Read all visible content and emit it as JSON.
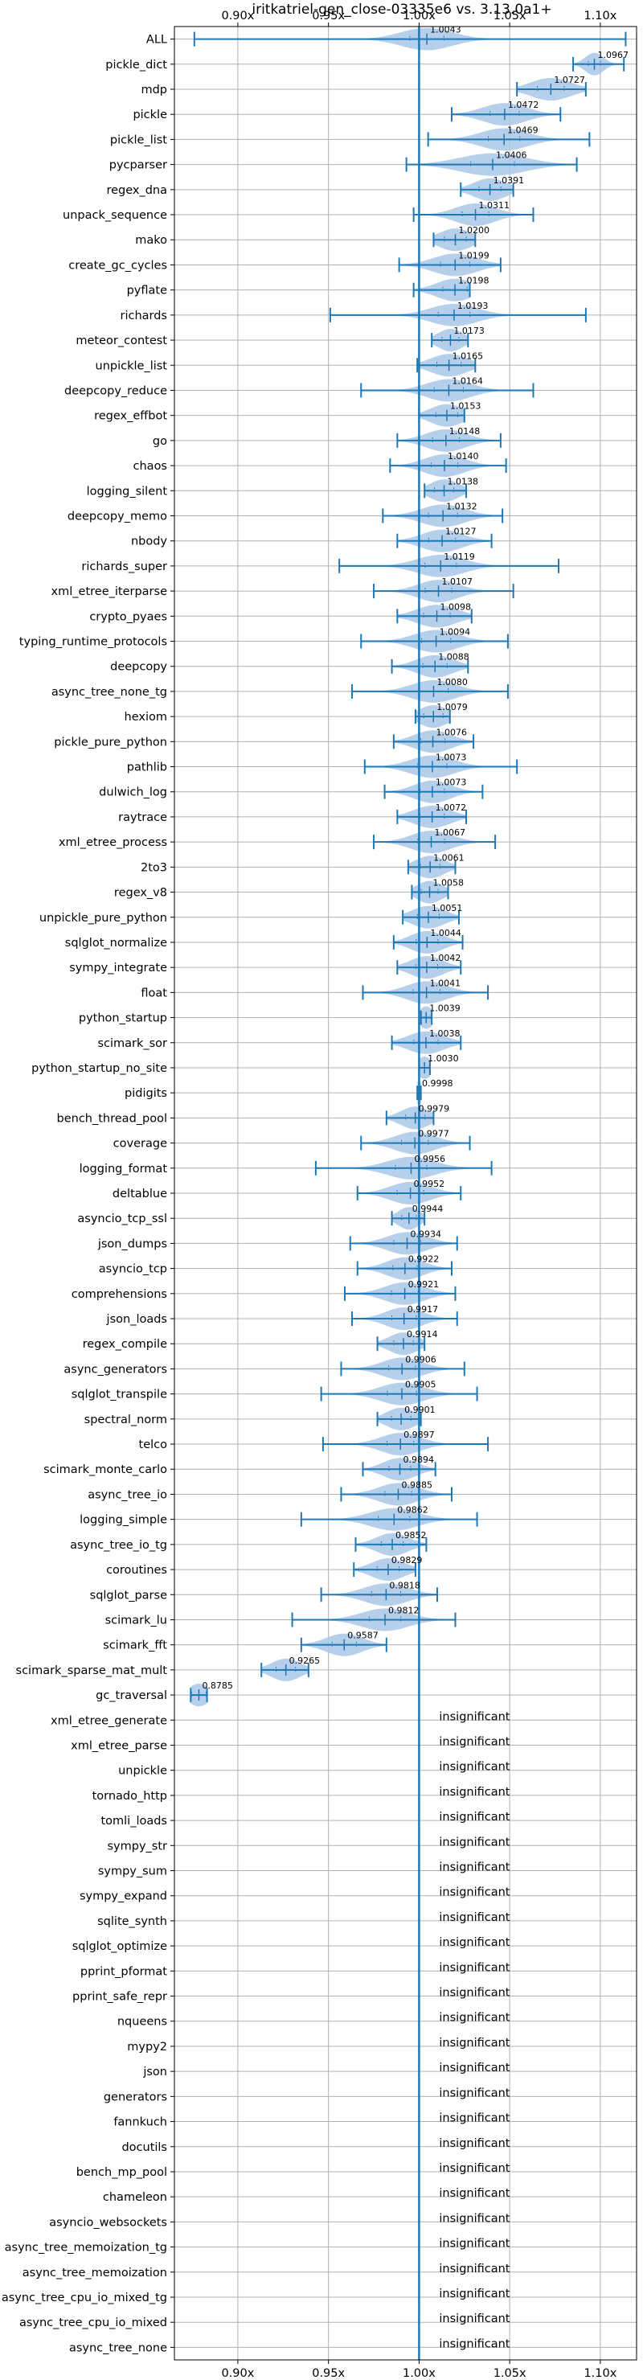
{
  "chart_data": {
    "type": "violin",
    "title": "iritkatriel-gen_close-03335e6 vs. 3.13.0a1+",
    "xlabel": "",
    "ylabel": "",
    "xlim": [
      0.865,
      1.12
    ],
    "x_ticks": [
      0.9,
      0.95,
      1.0,
      1.05,
      1.1
    ],
    "x_tick_labels": [
      "0.90x",
      "0.95x",
      "1.00x",
      "1.05x",
      "1.10x"
    ],
    "ticks_top": true,
    "ticks_bottom": true,
    "grid": true,
    "reference_line": 1.0,
    "colors": {
      "violin": "#a9c8e8",
      "whisker": "#1f77b4",
      "reference": "#1f77b4",
      "grid": "#b0b0b0"
    },
    "insignificant_text": "insignificant",
    "benchmarks": [
      {
        "name": "ALL",
        "median": 1.0043,
        "label": "1.0043",
        "min": 0.876,
        "max": 1.114,
        "w": 0.014,
        "significant": true
      },
      {
        "name": "pickle_dict",
        "median": 1.0967,
        "label": "1.0967",
        "min": 1.085,
        "max": 1.113,
        "w": 0.005,
        "significant": true
      },
      {
        "name": "mdp",
        "median": 1.0727,
        "label": "1.0727",
        "min": 1.054,
        "max": 1.092,
        "w": 0.011,
        "significant": true
      },
      {
        "name": "pickle",
        "median": 1.0472,
        "label": "1.0472",
        "min": 1.018,
        "max": 1.078,
        "w": 0.012,
        "significant": true
      },
      {
        "name": "pickle_list",
        "median": 1.0469,
        "label": "1.0469",
        "min": 1.005,
        "max": 1.094,
        "w": 0.013,
        "significant": true
      },
      {
        "name": "pycparser",
        "median": 1.0406,
        "label": "1.0406",
        "min": 0.993,
        "max": 1.087,
        "w": 0.018,
        "significant": true
      },
      {
        "name": "regex_dna",
        "median": 1.0391,
        "label": "1.0391",
        "min": 1.023,
        "max": 1.052,
        "w": 0.009,
        "significant": true
      },
      {
        "name": "unpack_sequence",
        "median": 1.0311,
        "label": "1.0311",
        "min": 0.997,
        "max": 1.063,
        "w": 0.011,
        "significant": true
      },
      {
        "name": "mako",
        "median": 1.02,
        "label": "1.0200",
        "min": 1.008,
        "max": 1.031,
        "w": 0.009,
        "significant": true
      },
      {
        "name": "create_gc_cycles",
        "median": 1.0199,
        "label": "1.0199",
        "min": 0.989,
        "max": 1.045,
        "w": 0.012,
        "significant": true
      },
      {
        "name": "pyflate",
        "median": 1.0198,
        "label": "1.0198",
        "min": 0.997,
        "max": 1.028,
        "w": 0.01,
        "significant": true
      },
      {
        "name": "richards",
        "median": 1.0193,
        "label": "1.0193",
        "min": 0.951,
        "max": 1.092,
        "w": 0.013,
        "significant": true
      },
      {
        "name": "meteor_contest",
        "median": 1.0173,
        "label": "1.0173",
        "min": 1.007,
        "max": 1.027,
        "w": 0.007,
        "significant": true
      },
      {
        "name": "unpickle_list",
        "median": 1.0165,
        "label": "1.0165",
        "min": 0.999,
        "max": 1.031,
        "w": 0.01,
        "significant": true
      },
      {
        "name": "deepcopy_reduce",
        "median": 1.0164,
        "label": "1.0164",
        "min": 0.968,
        "max": 1.063,
        "w": 0.012,
        "significant": true
      },
      {
        "name": "regex_effbot",
        "median": 1.0153,
        "label": "1.0153",
        "min": 1.0,
        "max": 1.025,
        "w": 0.009,
        "significant": true
      },
      {
        "name": "go",
        "median": 1.0148,
        "label": "1.0148",
        "min": 0.988,
        "max": 1.045,
        "w": 0.011,
        "significant": true
      },
      {
        "name": "chaos",
        "median": 1.014,
        "label": "1.0140",
        "min": 0.984,
        "max": 1.048,
        "w": 0.011,
        "significant": true
      },
      {
        "name": "logging_silent",
        "median": 1.0138,
        "label": "1.0138",
        "min": 1.003,
        "max": 1.026,
        "w": 0.008,
        "significant": true
      },
      {
        "name": "deepcopy_memo",
        "median": 1.0132,
        "label": "1.0132",
        "min": 0.98,
        "max": 1.046,
        "w": 0.012,
        "significant": true
      },
      {
        "name": "nbody",
        "median": 1.0127,
        "label": "1.0127",
        "min": 0.988,
        "max": 1.04,
        "w": 0.011,
        "significant": true
      },
      {
        "name": "richards_super",
        "median": 1.0119,
        "label": "1.0119",
        "min": 0.956,
        "max": 1.077,
        "w": 0.013,
        "significant": true
      },
      {
        "name": "xml_etree_iterparse",
        "median": 1.0107,
        "label": "1.0107",
        "min": 0.975,
        "max": 1.052,
        "w": 0.011,
        "significant": true
      },
      {
        "name": "crypto_pyaes",
        "median": 1.0098,
        "label": "1.0098",
        "min": 0.988,
        "max": 1.029,
        "w": 0.011,
        "significant": true
      },
      {
        "name": "typing_runtime_protocols",
        "median": 1.0094,
        "label": "1.0094",
        "min": 0.968,
        "max": 1.049,
        "w": 0.012,
        "significant": true
      },
      {
        "name": "deepcopy",
        "median": 1.0088,
        "label": "1.0088",
        "min": 0.985,
        "max": 1.027,
        "w": 0.01,
        "significant": true
      },
      {
        "name": "async_tree_none_tg",
        "median": 1.008,
        "label": "1.0080",
        "min": 0.963,
        "max": 1.049,
        "w": 0.012,
        "significant": true
      },
      {
        "name": "hexiom",
        "median": 1.0079,
        "label": "1.0079",
        "min": 0.998,
        "max": 1.017,
        "w": 0.008,
        "significant": true
      },
      {
        "name": "pickle_pure_python",
        "median": 1.0076,
        "label": "1.0076",
        "min": 0.986,
        "max": 1.03,
        "w": 0.01,
        "significant": true
      },
      {
        "name": "pathlib",
        "median": 1.0073,
        "label": "1.0073",
        "min": 0.97,
        "max": 1.054,
        "w": 0.012,
        "significant": true
      },
      {
        "name": "dulwich_log",
        "median": 1.0073,
        "label": "1.0073",
        "min": 0.981,
        "max": 1.035,
        "w": 0.01,
        "significant": true
      },
      {
        "name": "raytrace",
        "median": 1.0072,
        "label": "1.0072",
        "min": 0.988,
        "max": 1.026,
        "w": 0.01,
        "significant": true
      },
      {
        "name": "xml_etree_process",
        "median": 1.0067,
        "label": "1.0067",
        "min": 0.975,
        "max": 1.042,
        "w": 0.011,
        "significant": true
      },
      {
        "name": "2to3",
        "median": 1.0061,
        "label": "1.0061",
        "min": 0.994,
        "max": 1.02,
        "w": 0.008,
        "significant": true
      },
      {
        "name": "regex_v8",
        "median": 1.0058,
        "label": "1.0058",
        "min": 0.996,
        "max": 1.016,
        "w": 0.007,
        "significant": true
      },
      {
        "name": "unpickle_pure_python",
        "median": 1.0051,
        "label": "1.0051",
        "min": 0.991,
        "max": 1.022,
        "w": 0.009,
        "significant": true
      },
      {
        "name": "sqlglot_normalize",
        "median": 1.0044,
        "label": "1.0044",
        "min": 0.986,
        "max": 1.024,
        "w": 0.009,
        "significant": true
      },
      {
        "name": "sympy_integrate",
        "median": 1.0042,
        "label": "1.0042",
        "min": 0.988,
        "max": 1.023,
        "w": 0.009,
        "significant": true
      },
      {
        "name": "float",
        "median": 1.0041,
        "label": "1.0041",
        "min": 0.969,
        "max": 1.038,
        "w": 0.011,
        "significant": true
      },
      {
        "name": "python_startup",
        "median": 1.0039,
        "label": "1.0039",
        "min": 1.001,
        "max": 1.007,
        "w": 0.004,
        "significant": true
      },
      {
        "name": "scimark_sor",
        "median": 1.0038,
        "label": "1.0038",
        "min": 0.985,
        "max": 1.023,
        "w": 0.01,
        "significant": true
      },
      {
        "name": "python_startup_no_site",
        "median": 1.003,
        "label": "1.0030",
        "min": 1.0,
        "max": 1.006,
        "w": 0.004,
        "significant": true
      },
      {
        "name": "pidigits",
        "median": 0.9998,
        "label": "0.9998",
        "min": 0.999,
        "max": 1.001,
        "w": 0.003,
        "significant": true
      },
      {
        "name": "bench_thread_pool",
        "median": 0.9979,
        "label": "0.9979",
        "min": 0.982,
        "max": 1.008,
        "w": 0.008,
        "significant": true
      },
      {
        "name": "coverage",
        "median": 0.9977,
        "label": "0.9977",
        "min": 0.968,
        "max": 1.028,
        "w": 0.011,
        "significant": true
      },
      {
        "name": "logging_format",
        "median": 0.9956,
        "label": "0.9956",
        "min": 0.943,
        "max": 1.04,
        "w": 0.013,
        "significant": true
      },
      {
        "name": "deltablue",
        "median": 0.9952,
        "label": "0.9952",
        "min": 0.966,
        "max": 1.023,
        "w": 0.011,
        "significant": true
      },
      {
        "name": "asyncio_tcp_ssl",
        "median": 0.9944,
        "label": "0.9944",
        "min": 0.985,
        "max": 1.003,
        "w": 0.006,
        "significant": true
      },
      {
        "name": "json_dumps",
        "median": 0.9934,
        "label": "0.9934",
        "min": 0.962,
        "max": 1.021,
        "w": 0.011,
        "significant": true
      },
      {
        "name": "asyncio_tcp",
        "median": 0.9922,
        "label": "0.9922",
        "min": 0.966,
        "max": 1.018,
        "w": 0.01,
        "significant": true
      },
      {
        "name": "comprehensions",
        "median": 0.9921,
        "label": "0.9921",
        "min": 0.959,
        "max": 1.02,
        "w": 0.011,
        "significant": true
      },
      {
        "name": "json_loads",
        "median": 0.9917,
        "label": "0.9917",
        "min": 0.963,
        "max": 1.021,
        "w": 0.01,
        "significant": true
      },
      {
        "name": "regex_compile",
        "median": 0.9914,
        "label": "0.9914",
        "min": 0.977,
        "max": 1.003,
        "w": 0.008,
        "significant": true
      },
      {
        "name": "async_generators",
        "median": 0.9906,
        "label": "0.9906",
        "min": 0.957,
        "max": 1.025,
        "w": 0.011,
        "significant": true
      },
      {
        "name": "sqlglot_transpile",
        "median": 0.9905,
        "label": "0.9905",
        "min": 0.946,
        "max": 1.032,
        "w": 0.012,
        "significant": true
      },
      {
        "name": "spectral_norm",
        "median": 0.9901,
        "label": "0.9901",
        "min": 0.977,
        "max": 1.001,
        "w": 0.008,
        "significant": true
      },
      {
        "name": "telco",
        "median": 0.9897,
        "label": "0.9897",
        "min": 0.947,
        "max": 1.038,
        "w": 0.011,
        "significant": true
      },
      {
        "name": "scimark_monte_carlo",
        "median": 0.9894,
        "label": "0.9894",
        "min": 0.969,
        "max": 1.009,
        "w": 0.009,
        "significant": true
      },
      {
        "name": "async_tree_io",
        "median": 0.9885,
        "label": "0.9885",
        "min": 0.957,
        "max": 1.018,
        "w": 0.011,
        "significant": true
      },
      {
        "name": "logging_simple",
        "median": 0.9862,
        "label": "0.9862",
        "min": 0.935,
        "max": 1.032,
        "w": 0.013,
        "significant": true
      },
      {
        "name": "async_tree_io_tg",
        "median": 0.9852,
        "label": "0.9852",
        "min": 0.965,
        "max": 1.004,
        "w": 0.009,
        "significant": true
      },
      {
        "name": "coroutines",
        "median": 0.9829,
        "label": "0.9829",
        "min": 0.964,
        "max": 0.998,
        "w": 0.009,
        "significant": true
      },
      {
        "name": "sqlglot_parse",
        "median": 0.9818,
        "label": "0.9818",
        "min": 0.946,
        "max": 1.01,
        "w": 0.012,
        "significant": true
      },
      {
        "name": "scimark_lu",
        "median": 0.9812,
        "label": "0.9812",
        "min": 0.93,
        "max": 1.02,
        "w": 0.013,
        "significant": true
      },
      {
        "name": "scimark_fft",
        "median": 0.9587,
        "label": "0.9587",
        "min": 0.935,
        "max": 0.982,
        "w": 0.01,
        "significant": true
      },
      {
        "name": "scimark_sparse_mat_mult",
        "median": 0.9265,
        "label": "0.9265",
        "min": 0.913,
        "max": 0.939,
        "w": 0.008,
        "significant": true
      },
      {
        "name": "gc_traversal",
        "median": 0.8785,
        "label": "0.8785",
        "min": 0.874,
        "max": 0.883,
        "w": 0.006,
        "significant": true
      },
      {
        "name": "xml_etree_generate",
        "significant": false
      },
      {
        "name": "xml_etree_parse",
        "significant": false
      },
      {
        "name": "unpickle",
        "significant": false
      },
      {
        "name": "tornado_http",
        "significant": false
      },
      {
        "name": "tomli_loads",
        "significant": false
      },
      {
        "name": "sympy_str",
        "significant": false
      },
      {
        "name": "sympy_sum",
        "significant": false
      },
      {
        "name": "sympy_expand",
        "significant": false
      },
      {
        "name": "sqlite_synth",
        "significant": false
      },
      {
        "name": "sqlglot_optimize",
        "significant": false
      },
      {
        "name": "pprint_pformat",
        "significant": false
      },
      {
        "name": "pprint_safe_repr",
        "significant": false
      },
      {
        "name": "nqueens",
        "significant": false
      },
      {
        "name": "mypy2",
        "significant": false
      },
      {
        "name": "json",
        "significant": false
      },
      {
        "name": "generators",
        "significant": false
      },
      {
        "name": "fannkuch",
        "significant": false
      },
      {
        "name": "docutils",
        "significant": false
      },
      {
        "name": "bench_mp_pool",
        "significant": false
      },
      {
        "name": "chameleon",
        "significant": false
      },
      {
        "name": "asyncio_websockets",
        "significant": false
      },
      {
        "name": "async_tree_memoization_tg",
        "significant": false
      },
      {
        "name": "async_tree_memoization",
        "significant": false
      },
      {
        "name": "async_tree_cpu_io_mixed_tg",
        "significant": false
      },
      {
        "name": "async_tree_cpu_io_mixed",
        "significant": false
      },
      {
        "name": "async_tree_none",
        "significant": false
      }
    ]
  }
}
